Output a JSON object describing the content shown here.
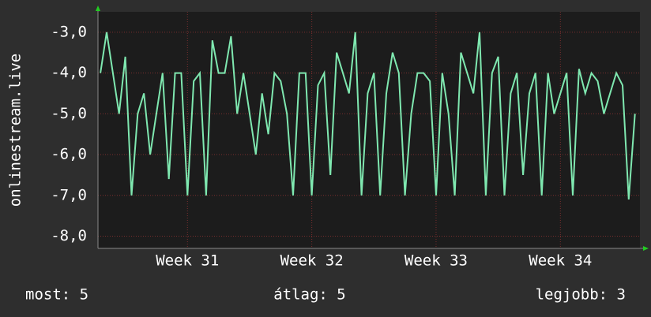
{
  "chart_data": {
    "type": "line",
    "y_label": "onlinestream.live",
    "x": [
      30.3,
      30.35,
      30.4,
      30.45,
      30.5,
      30.55,
      30.6,
      30.65,
      30.7,
      30.75,
      30.8,
      30.85,
      30.9,
      30.95,
      31.0,
      31.05,
      31.1,
      31.15,
      31.2,
      31.25,
      31.3,
      31.35,
      31.4,
      31.45,
      31.5,
      31.55,
      31.6,
      31.65,
      31.7,
      31.75,
      31.8,
      31.85,
      31.9,
      31.95,
      32.0,
      32.05,
      32.1,
      32.15,
      32.2,
      32.25,
      32.3,
      32.35,
      32.4,
      32.45,
      32.5,
      32.55,
      32.6,
      32.65,
      32.7,
      32.75,
      32.8,
      32.85,
      32.9,
      32.95,
      33.0,
      33.05,
      33.1,
      33.15,
      33.2,
      33.25,
      33.3,
      33.35,
      33.4,
      33.45,
      33.5,
      33.55,
      33.6,
      33.65,
      33.7,
      33.75,
      33.8,
      33.85,
      33.9,
      33.95,
      34.0,
      34.05,
      34.1,
      34.15,
      34.2,
      34.25,
      34.3,
      34.35,
      34.4,
      34.45,
      34.5,
      34.55,
      34.6
    ],
    "series": [
      {
        "color": "#7fe8b0",
        "values": [
          -4,
          -3,
          -4,
          -5,
          -3.6,
          -7,
          -5,
          -4.5,
          -6,
          -5,
          -4,
          -6.6,
          -4,
          -4,
          -7,
          -4.2,
          -4,
          -7,
          -3.2,
          -4,
          -4,
          -3.1,
          -5,
          -4,
          -5,
          -6,
          -4.5,
          -5.5,
          -4,
          -4.2,
          -5,
          -7,
          -4,
          -4,
          -7,
          -4.3,
          -4,
          -6.5,
          -3.5,
          -4,
          -4.5,
          -3,
          -7,
          -4.5,
          -4,
          -7,
          -4.5,
          -3.5,
          -4,
          -7,
          -5,
          -4,
          -4,
          -4.2,
          -7,
          -4,
          -5,
          -7,
          -3.5,
          -4,
          -4.5,
          -3,
          -7,
          -4,
          -3.6,
          -7,
          -4.5,
          -4,
          -6.5,
          -4.5,
          -4,
          -7,
          -4,
          -5,
          -4.5,
          -4,
          -7,
          -3.9,
          -4.5,
          -4,
          -4.2,
          -5,
          -4.5,
          -4,
          -4.3,
          -7.1,
          -5
        ]
      }
    ],
    "xlim": [
      30.28,
      34.64
    ],
    "xticks": [
      {
        "value": 31,
        "label": "Week 31"
      },
      {
        "value": 32,
        "label": "Week 32"
      },
      {
        "value": 33,
        "label": "Week 33"
      },
      {
        "value": 34,
        "label": "Week 34"
      }
    ],
    "ylim": [
      -8.3,
      -2.5
    ],
    "yticks": [
      {
        "value": -3,
        "label": "-3,0"
      },
      {
        "value": -4,
        "label": "-4,0"
      },
      {
        "value": -5,
        "label": "-5,0"
      },
      {
        "value": -6,
        "label": "-6,0"
      },
      {
        "value": -7,
        "label": "-7,0"
      },
      {
        "value": -8,
        "label": "-8,0"
      }
    ],
    "grid": true,
    "stats": [
      "most: 5",
      "átlag: 5",
      "legjobb: 3"
    ]
  }
}
